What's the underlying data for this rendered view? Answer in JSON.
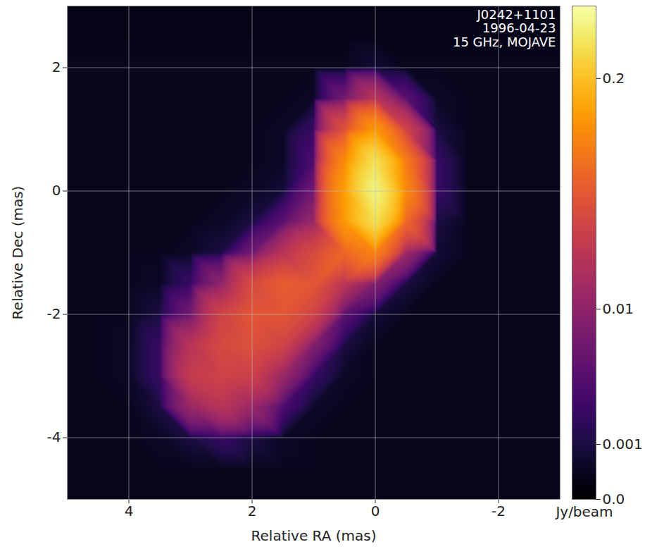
{
  "chart_data": {
    "type": "heatmap",
    "x_label": "Relative RA (mas)",
    "y_label": "Relative Dec (mas)",
    "annotations": [
      "J0242+1101",
      "1996-04-23",
      "15 GHz, MOJAVE"
    ],
    "xlim": [
      5,
      -3
    ],
    "ylim": [
      -5,
      3
    ],
    "xticks": [
      4,
      2,
      0,
      -2
    ],
    "yticks": [
      -4,
      -2,
      0,
      2
    ],
    "grid": true,
    "color": "inferno",
    "colorbar": {
      "lim": [
        0,
        0.5
      ],
      "ticks": [
        {
          "value": 0,
          "label": "0.0"
        },
        0.001,
        0.01,
        0.2
      ],
      "label": "Jy/beam"
    },
    "cells": {
      "x": [
        5,
        4.5,
        4,
        3.5,
        3,
        2.5,
        2,
        1.5,
        1,
        0.5,
        0,
        -0.5,
        -1,
        -1.5,
        -2,
        -2.5,
        -3
      ],
      "y": [
        3,
        2.5,
        2,
        1.5,
        1,
        0.5,
        0,
        -0.5,
        -1,
        -1.5,
        -2,
        -2.5,
        -3,
        -3.5,
        -4,
        -4.5,
        -5
      ],
      "values": [
        [
          0.0003,
          0.0003,
          0.0003,
          0.0003,
          0.0003,
          0.0003,
          0.0003,
          0.0003,
          0.0003,
          0.0003,
          0.0003,
          0.0003,
          0.0003,
          0.0003,
          0.0003,
          0.0003,
          0.0003
        ],
        [
          0.0003,
          0.0003,
          0.0003,
          0.0003,
          0.0003,
          0.0003,
          0.0003,
          0.0003,
          0.0003,
          0.0003,
          0.0003,
          0.0003,
          0.0003,
          0.0003,
          0.0003,
          0.0003,
          0.0003
        ],
        [
          0.0004,
          0.0004,
          0.0004,
          0.0004,
          0.0004,
          0.0004,
          0.0004,
          0.0004,
          0.0004,
          0.0004,
          0.0008,
          0.0004,
          0.0004,
          0.0004,
          0.0004,
          0.0004,
          0.0004
        ],
        [
          0.0004,
          0.0004,
          0.0004,
          0.0004,
          0.0004,
          0.0004,
          0.0004,
          0.0004,
          0.0005,
          0.006,
          0.02,
          0.004,
          0.0005,
          0.0004,
          0.0004,
          0.0004,
          0.0004
        ],
        [
          0.0004,
          0.0004,
          0.0004,
          0.0004,
          0.0004,
          0.0004,
          0.0004,
          0.0005,
          0.002,
          0.04,
          0.12,
          0.03,
          0.001,
          0.0004,
          0.0004,
          0.0004,
          0.0004
        ],
        [
          0.0004,
          0.0004,
          0.0004,
          0.0004,
          0.0004,
          0.0004,
          0.0004,
          0.0005,
          0.003,
          0.1,
          0.3,
          0.08,
          0.002,
          0.0004,
          0.0004,
          0.0004,
          0.0004
        ],
        [
          0.0004,
          0.0004,
          0.0004,
          0.0004,
          0.0004,
          0.0004,
          0.0005,
          0.0008,
          0.006,
          0.13,
          0.4,
          0.1,
          0.002,
          0.0004,
          0.0004,
          0.0004,
          0.0004
        ],
        [
          0.0004,
          0.0004,
          0.0004,
          0.0004,
          0.0004,
          0.0005,
          0.001,
          0.004,
          0.012,
          0.12,
          0.3,
          0.06,
          0.001,
          0.0004,
          0.0004,
          0.0004,
          0.0004
        ],
        [
          0.0004,
          0.0004,
          0.0004,
          0.0004,
          0.0005,
          0.001,
          0.006,
          0.02,
          0.035,
          0.06,
          0.09,
          0.012,
          0.0008,
          0.0004,
          0.0004,
          0.0004,
          0.0004
        ],
        [
          0.0004,
          0.0004,
          0.0004,
          0.0005,
          0.002,
          0.01,
          0.035,
          0.05,
          0.045,
          0.02,
          0.008,
          0.001,
          0.0004,
          0.0004,
          0.0004,
          0.0004,
          0.0004
        ],
        [
          0.0004,
          0.0004,
          0.0004,
          0.001,
          0.006,
          0.03,
          0.045,
          0.045,
          0.03,
          0.004,
          0.0008,
          0.0004,
          0.0004,
          0.0004,
          0.0004,
          0.0004,
          0.0004
        ],
        [
          0.0004,
          0.0004,
          0.0005,
          0.002,
          0.02,
          0.035,
          0.04,
          0.03,
          0.008,
          0.001,
          0.0004,
          0.0004,
          0.0004,
          0.0004,
          0.0004,
          0.0004,
          0.0004
        ],
        [
          0.0004,
          0.0004,
          0.0005,
          0.002,
          0.025,
          0.03,
          0.028,
          0.012,
          0.002,
          0.0005,
          0.0004,
          0.0004,
          0.0004,
          0.0004,
          0.0004,
          0.0004,
          0.0004
        ],
        [
          0.0004,
          0.0004,
          0.0004,
          0.001,
          0.012,
          0.02,
          0.012,
          0.003,
          0.0006,
          0.0004,
          0.0004,
          0.0004,
          0.0004,
          0.0004,
          0.0004,
          0.0004,
          0.0004
        ],
        [
          0.0004,
          0.0004,
          0.0004,
          0.0005,
          0.001,
          0.002,
          0.001,
          0.0005,
          0.0004,
          0.0004,
          0.0004,
          0.0004,
          0.0004,
          0.0004,
          0.0004,
          0.0004,
          0.0004
        ],
        [
          0.0004,
          0.0004,
          0.0004,
          0.0004,
          0.0004,
          0.0004,
          0.0004,
          0.0004,
          0.0004,
          0.0004,
          0.0004,
          0.0004,
          0.0004,
          0.0004,
          0.0004,
          0.0004,
          0.0004
        ],
        [
          0.0004,
          0.0004,
          0.0004,
          0.0004,
          0.0004,
          0.0004,
          0.0004,
          0.0004,
          0.0004,
          0.0004,
          0.0004,
          0.0004,
          0.0004,
          0.0004,
          0.0004,
          0.0004,
          0.0004
        ]
      ]
    }
  }
}
